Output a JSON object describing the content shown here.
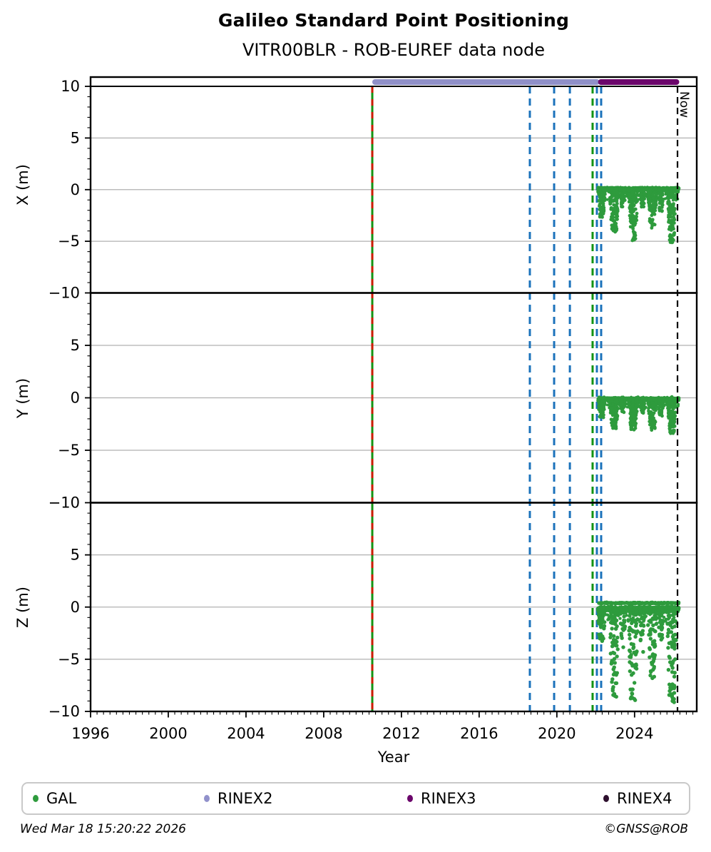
{
  "title": "Galileo Standard Point Positioning",
  "subtitle": "VITR00BLR - ROB-EUREF data node",
  "footer": {
    "timestamp": "Wed Mar 18 15:20:22 2026",
    "copyright": "©GNSS@ROB"
  },
  "legend": {
    "items": [
      {
        "label": "GAL",
        "color": "#2e9b3d"
      },
      {
        "label": "RINEX2",
        "color": "#9191cb"
      },
      {
        "label": "RINEX3",
        "color": "#6b066b"
      },
      {
        "label": "RINEX4",
        "color": "#2d0f2d"
      }
    ]
  },
  "chart_data": {
    "type": "scatter",
    "title": "Galileo Standard Point Positioning",
    "subtitle": "VITR00BLR - ROB-EUREF data node",
    "xlabel": "Year",
    "xlim": [
      1996,
      2027.2
    ],
    "x_major_ticks": [
      1996,
      2000,
      2004,
      2008,
      2012,
      2016,
      2020,
      2024
    ],
    "x_minor_step_years": 0.33333,
    "grid": "horizontal-only",
    "gal_color": "#2e9b3d",
    "now": {
      "x": 2026.21,
      "label": "Now"
    },
    "bars": [
      {
        "name": "RINEX2",
        "x_start": 2010.5,
        "x_end": 2022.2,
        "color": "#9090c8"
      },
      {
        "name": "RINEX3",
        "x_start": 2022.12,
        "x_end": 2026.3,
        "color": "#6b066b"
      }
    ],
    "vlines": [
      {
        "x": 2010.5,
        "color": "#129312",
        "style": "solid",
        "width": 3
      },
      {
        "x": 2010.5,
        "color": "#cc1a00",
        "style": "dashed",
        "width": 3,
        "dash": "9 9"
      },
      {
        "x": 2018.61,
        "color": "#1b72bb",
        "style": "dashed",
        "width": 3,
        "dash": "10 7"
      },
      {
        "x": 2019.86,
        "color": "#1b72bb",
        "style": "dashed",
        "width": 3,
        "dash": "10 7"
      },
      {
        "x": 2020.67,
        "color": "#1b72bb",
        "style": "dashed",
        "width": 3,
        "dash": "10 7"
      },
      {
        "x": 2021.84,
        "color": "#129312",
        "style": "dashed",
        "width": 3,
        "dash": "10 7"
      },
      {
        "x": 2022.06,
        "color": "#1b72bb",
        "style": "dashed",
        "width": 3,
        "dash": "10 7"
      },
      {
        "x": 2022.28,
        "color": "#1b72bb",
        "style": "dashed",
        "width": 3,
        "dash": "10 7"
      }
    ],
    "panels": [
      {
        "ylabel": "X (m)",
        "ylim": [
          -10,
          10.9
        ],
        "yticks": [
          {
            "v": 10,
            "label": "10"
          },
          {
            "v": 5,
            "label": "5"
          },
          {
            "v": 0,
            "label": "0"
          },
          {
            "v": -5,
            "label": "−5"
          },
          {
            "v": -10,
            "label": "−10"
          }
        ],
        "limit_line_at": 10,
        "gal": {
          "band": {
            "x_start": 2022.12,
            "x_end": 2026.28,
            "center": 0.08,
            "spread": 0.16,
            "n": 1000,
            "r": 2.4
          },
          "fuzz": {
            "n": 260,
            "depth": 1.1
          },
          "drips": [
            {
              "x": 2022.3,
              "depth": -2.7,
              "n": 80,
              "w": 0.4
            },
            {
              "x": 2022.95,
              "depth": -4.2,
              "n": 115,
              "w": 0.5
            },
            {
              "x": 2023.4,
              "depth": -1.7,
              "n": 45,
              "w": 0.3
            },
            {
              "x": 2023.93,
              "depth": -4.9,
              "n": 125,
              "w": 0.5
            },
            {
              "x": 2024.4,
              "depth": -1.9,
              "n": 45,
              "w": 0.3
            },
            {
              "x": 2024.92,
              "depth": -3.7,
              "n": 100,
              "w": 0.5
            },
            {
              "x": 2025.35,
              "depth": -2.1,
              "n": 45,
              "w": 0.3
            },
            {
              "x": 2025.92,
              "depth": -5.2,
              "n": 130,
              "w": 0.5
            }
          ]
        }
      },
      {
        "ylabel": "Y (m)",
        "ylim": [
          -10,
          10
        ],
        "yticks": [
          {
            "v": 5,
            "label": "5"
          },
          {
            "v": 0,
            "label": "0"
          },
          {
            "v": -5,
            "label": "−5"
          },
          {
            "v": -10,
            "label": "−10"
          }
        ],
        "gal": {
          "band": {
            "x_start": 2022.12,
            "x_end": 2026.28,
            "center": -0.12,
            "spread": 0.15,
            "n": 1000,
            "r": 2.4
          },
          "fuzz": {
            "n": 240,
            "depth": 0.9
          },
          "drips": [
            {
              "x": 2022.3,
              "depth": -1.9,
              "n": 65,
              "w": 0.4
            },
            {
              "x": 2022.95,
              "depth": -3.0,
              "n": 110,
              "w": 0.5
            },
            {
              "x": 2023.4,
              "depth": -1.4,
              "n": 40,
              "w": 0.3
            },
            {
              "x": 2023.93,
              "depth": -3.1,
              "n": 115,
              "w": 0.5
            },
            {
              "x": 2024.4,
              "depth": -1.5,
              "n": 40,
              "w": 0.3
            },
            {
              "x": 2024.92,
              "depth": -3.0,
              "n": 105,
              "w": 0.5
            },
            {
              "x": 2025.35,
              "depth": -1.7,
              "n": 40,
              "w": 0.3
            },
            {
              "x": 2025.92,
              "depth": -3.4,
              "n": 120,
              "w": 0.5
            }
          ]
        }
      },
      {
        "ylabel": "Z (m)",
        "ylim": [
          -10,
          10
        ],
        "yticks": [
          {
            "v": 5,
            "label": "5"
          },
          {
            "v": 0,
            "label": "0"
          },
          {
            "v": -5,
            "label": "−5"
          },
          {
            "v": -10,
            "label": "−10"
          }
        ],
        "gal": {
          "band": {
            "x_start": 2022.12,
            "x_end": 2026.28,
            "center": -0.2,
            "spread": 0.28,
            "n": 900,
            "r": 2.6
          },
          "band2": {
            "center": 0.38,
            "spread": 0.1,
            "n": 300
          },
          "fuzz": {
            "n": 200,
            "depth": 1.4
          },
          "sparse": true,
          "drips": [
            {
              "x": 2022.3,
              "depth": -3.3,
              "n": 40,
              "w": 0.42
            },
            {
              "x": 2022.95,
              "depth": -8.6,
              "n": 70,
              "w": 0.5
            },
            {
              "x": 2023.4,
              "depth": -4.0,
              "n": 28,
              "w": 0.3
            },
            {
              "x": 2023.93,
              "depth": -8.9,
              "n": 75,
              "w": 0.52
            },
            {
              "x": 2024.4,
              "depth": -4.5,
              "n": 28,
              "w": 0.3
            },
            {
              "x": 2024.9,
              "depth": -7.0,
              "n": 60,
              "w": 0.5
            },
            {
              "x": 2025.35,
              "depth": -3.2,
              "n": 26,
              "w": 0.3
            },
            {
              "x": 2025.92,
              "depth": -9.2,
              "n": 78,
              "w": 0.52
            }
          ]
        }
      }
    ]
  }
}
